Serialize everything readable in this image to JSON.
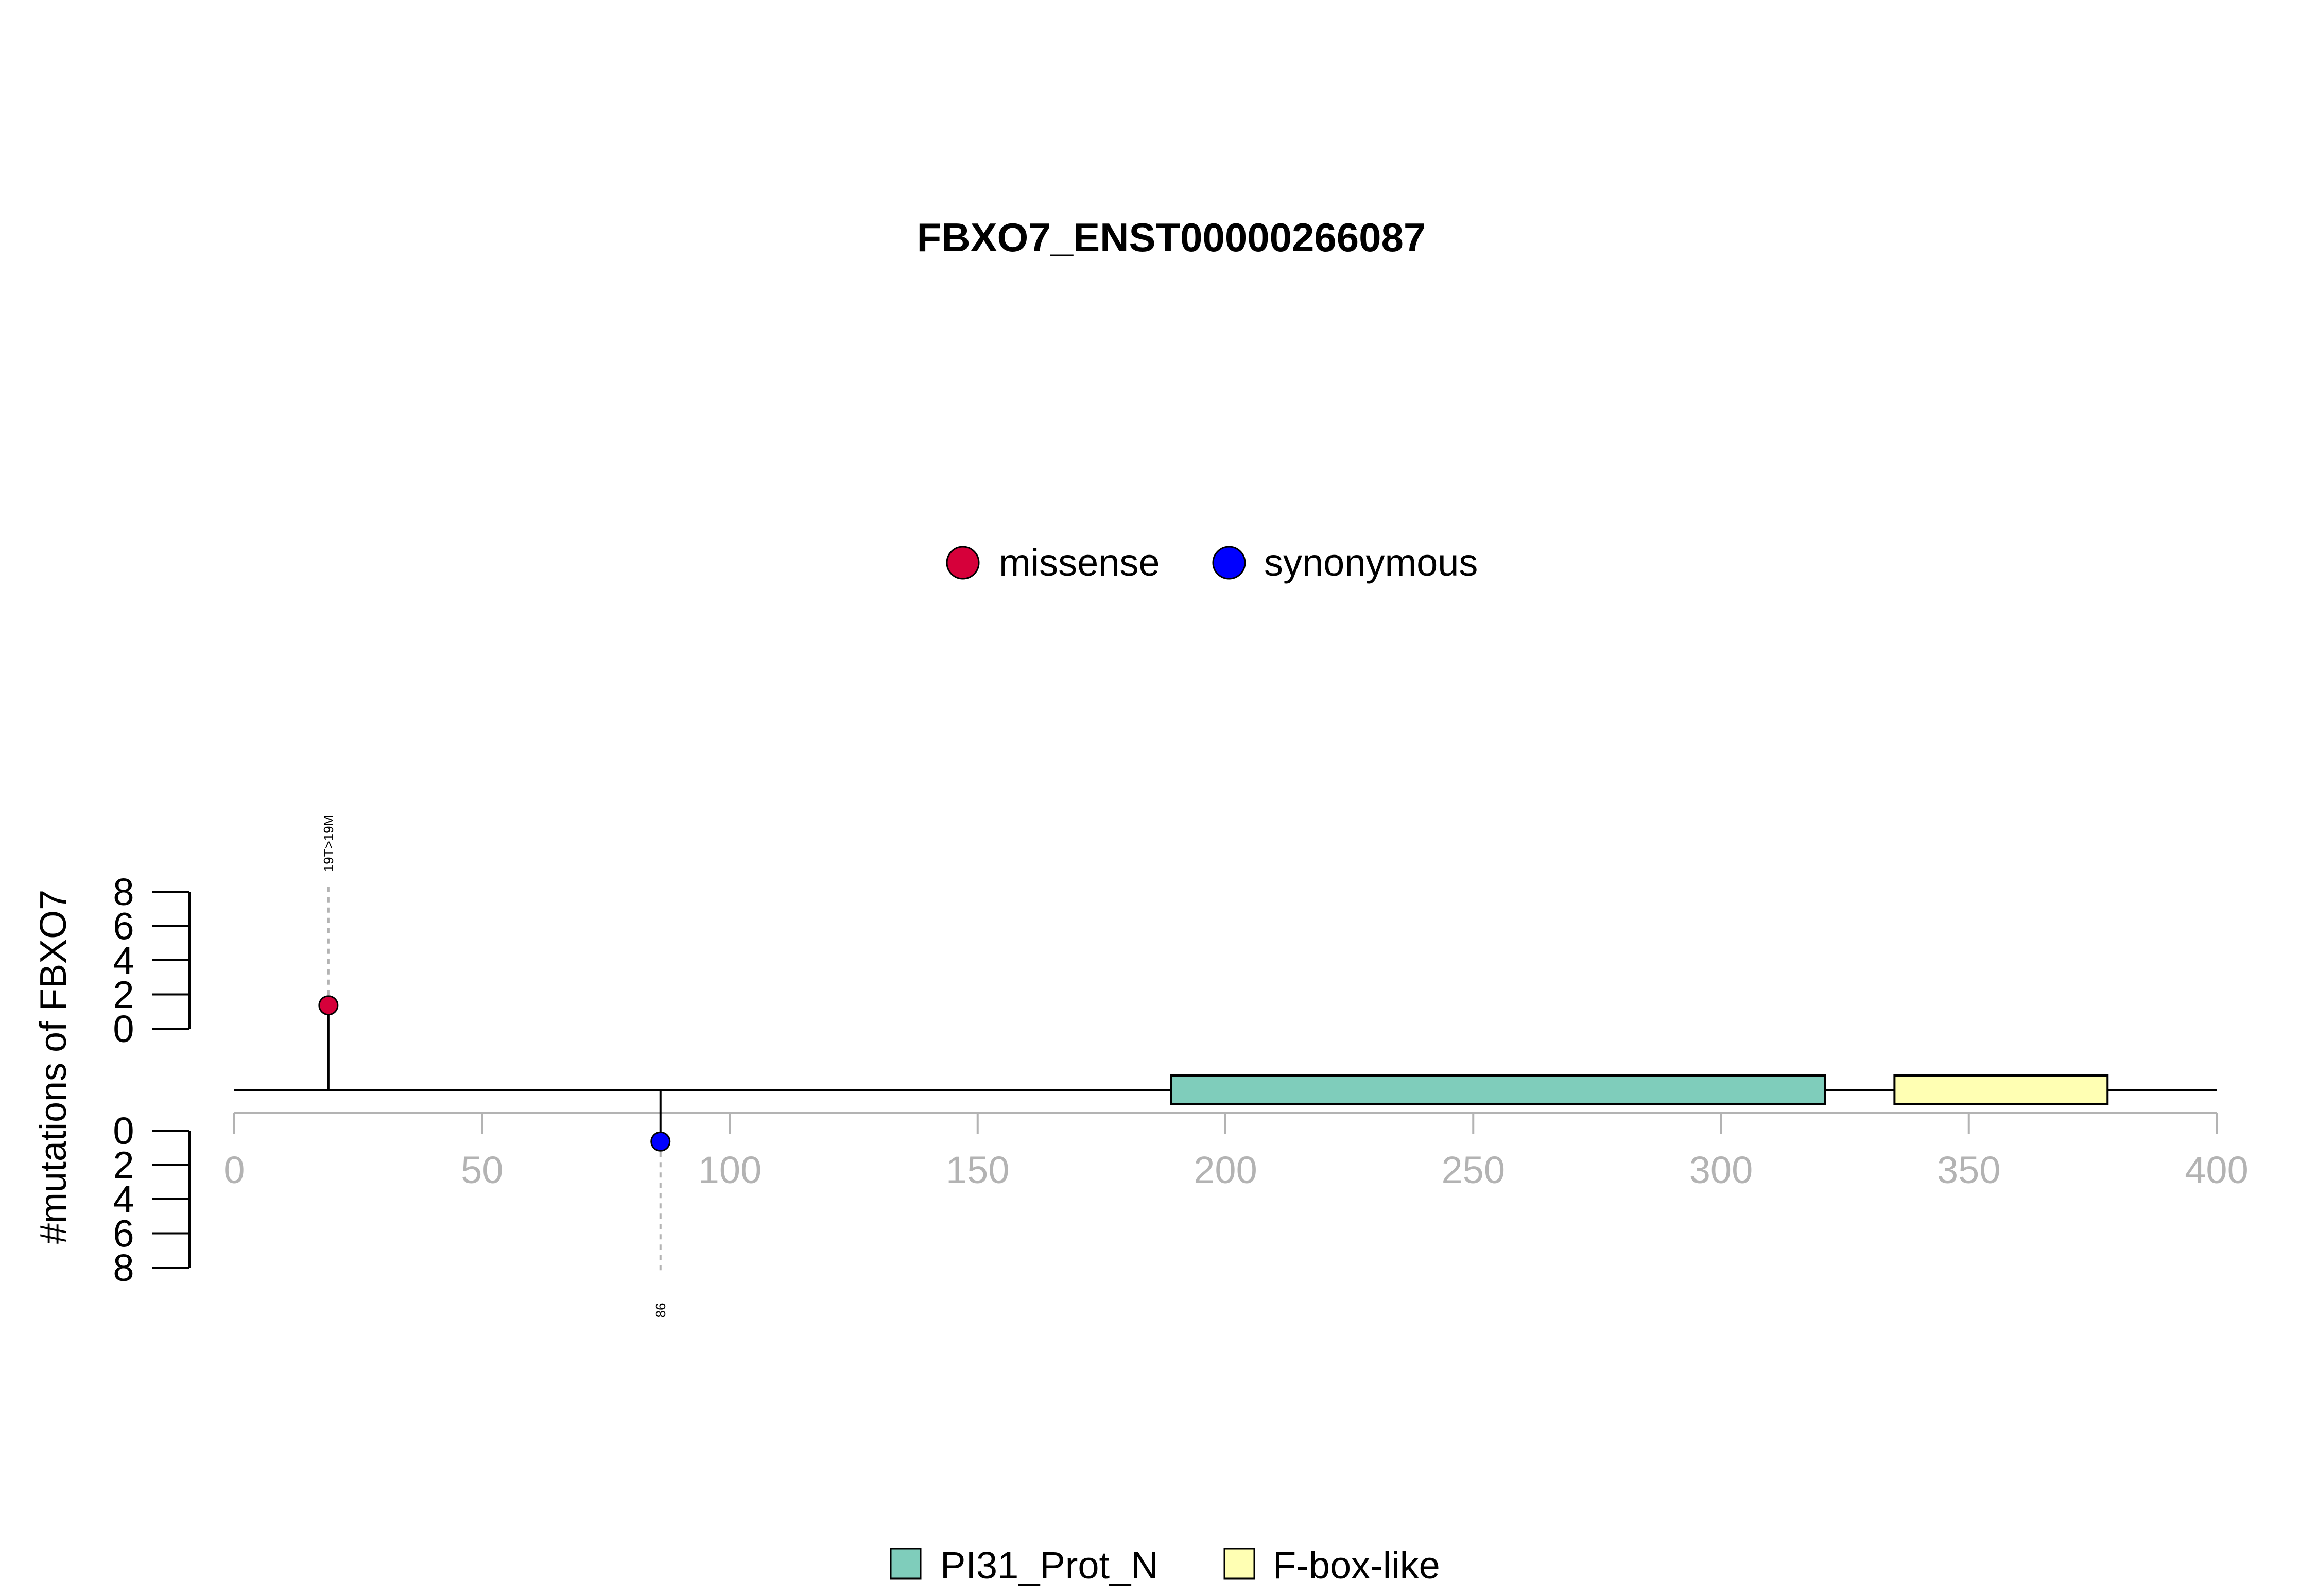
{
  "chart_data": {
    "type": "lollipop",
    "title": "FBXO7_ENST00000266087",
    "ylabel": "#mutations of FBXO7",
    "xlim": [
      0,
      400
    ],
    "x_ticks": [
      0,
      50,
      100,
      150,
      200,
      250,
      300,
      350,
      400
    ],
    "y_ticks": [
      0,
      2,
      4,
      6,
      8
    ],
    "ylim": [
      0,
      8
    ],
    "protein_length": 400,
    "mutation_legend": [
      {
        "label": "missense",
        "color": "#d6003a"
      },
      {
        "label": "synonymous",
        "color": "#0000ff"
      }
    ],
    "mutations": [
      {
        "position": 19,
        "count": 1,
        "type": "missense",
        "color": "#d6003a",
        "label": "19T>19M",
        "side": "top"
      },
      {
        "position": 86,
        "count": 1,
        "type": "synonymous",
        "color": "#0000ff",
        "label": "86",
        "side": "bottom"
      }
    ],
    "domains": [
      {
        "name": "PI31_Prot_N",
        "start": 189,
        "end": 321,
        "color": "#7fcdbb"
      },
      {
        "name": "F-box-like",
        "start": 335,
        "end": 378,
        "color": "#ffffb3"
      }
    ],
    "domain_legend": [
      {
        "label": "PI31_Prot_N",
        "color": "#7fcdbb"
      },
      {
        "label": "F-box-like",
        "color": "#ffffb3"
      }
    ]
  }
}
